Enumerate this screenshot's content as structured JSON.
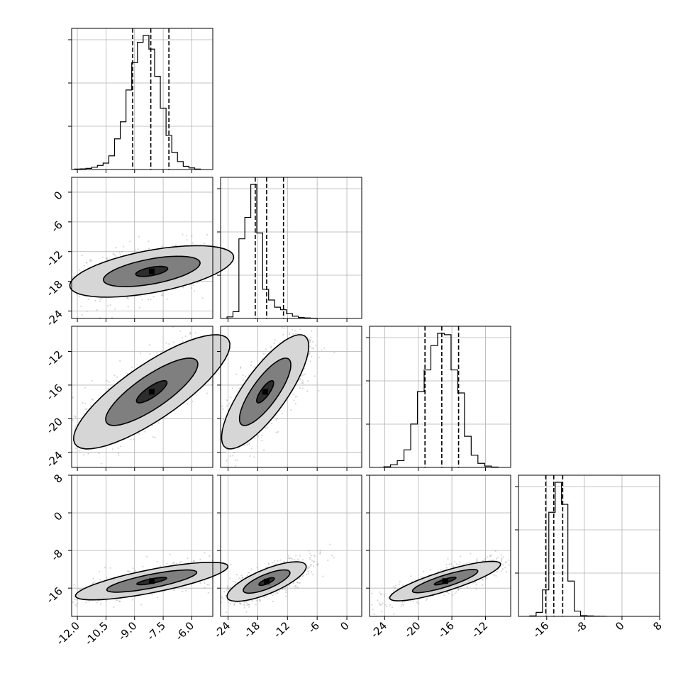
{
  "chart_data": {
    "type": "corner",
    "grid": true,
    "parameters": [
      {
        "range": [
          -12.3,
          -4.9
        ],
        "ticks": [
          "-12.0",
          "-10.5",
          "-9.0",
          "-7.5",
          "-6.0"
        ],
        "tick_values": [
          -12.0,
          -10.5,
          -9.0,
          -7.5,
          -6.0
        ]
      },
      {
        "range": [
          -25.5,
          3.0
        ],
        "ticks": [
          "-24",
          "-18",
          "-12",
          "-6",
          "0"
        ],
        "tick_values": [
          -24,
          -18,
          -12,
          -6,
          0
        ]
      },
      {
        "range": [
          -25.8,
          -9.0
        ],
        "ticks": [
          "-24",
          "-20",
          "-16",
          "-12"
        ],
        "tick_values": [
          -24,
          -20,
          -16,
          -12
        ]
      },
      {
        "range": [
          -22.0,
          8.0
        ],
        "ticks": [
          "-16",
          "-8",
          "0",
          "8"
        ],
        "tick_values": [
          -16,
          -8,
          0,
          8
        ],
        "panel_ticks": [
          "8",
          "0",
          "-8",
          "-16"
        ]
      }
    ],
    "histograms": [
      {
        "quantiles": [
          -9.1,
          -8.15,
          -7.2
        ],
        "bin_start": -12.15,
        "bin_width": 0.3,
        "counts": [
          2,
          3,
          5,
          10,
          18,
          28,
          60,
          135,
          210,
          350,
          470,
          560,
          590,
          530,
          410,
          270,
          150,
          75,
          35,
          14,
          7,
          2
        ]
      },
      {
        "quantiles": [
          -18.5,
          -16.2,
          -12.8
        ],
        "bin_start": -24.2,
        "bin_width": 1.2,
        "counts": [
          8,
          35,
          410,
          520,
          690,
          440,
          150,
          95,
          58,
          45,
          25,
          12,
          5,
          3,
          1
        ]
      },
      {
        "quantiles": [
          -19.2,
          -17.2,
          -15.2
        ],
        "bin_start": -24.1,
        "bin_width": 0.8,
        "counts": [
          5,
          20,
          50,
          130,
          320,
          560,
          720,
          900,
          990,
          980,
          720,
          550,
          230,
          90,
          30,
          10,
          3
        ]
      },
      {
        "quantiles": [
          -16.2,
          -14.5,
          -12.6
        ],
        "bin_start": -19.6,
        "bin_width": 1.35,
        "counts": [
          5,
          45,
          300,
          1180,
          1520,
          1270,
          400,
          60,
          8,
          5,
          2,
          1
        ]
      }
    ],
    "pairs": [
      {
        "x_param": 0,
        "y_param": 1,
        "center": [
          -8.1,
          -16.0
        ],
        "rx": 2.15,
        "ry": 2.6,
        "rho": 0.55
      },
      {
        "x_param": 0,
        "y_param": 2,
        "center": [
          -8.1,
          -16.8
        ],
        "rx": 2.05,
        "ry": 3.4,
        "rho": 0.82
      },
      {
        "x_param": 1,
        "y_param": 2,
        "center": [
          -16.5,
          -16.8
        ],
        "rx": 4.4,
        "ry": 3.4,
        "rho": 0.8
      },
      {
        "x_param": 0,
        "y_param": 3,
        "center": [
          -8.1,
          -14.5
        ],
        "rx": 2.0,
        "ry": 2.0,
        "rho": 0.78
      },
      {
        "x_param": 1,
        "y_param": 3,
        "center": [
          -16.2,
          -14.6
        ],
        "rx": 4.0,
        "ry": 2.1,
        "rho": 0.75
      },
      {
        "x_param": 2,
        "y_param": 3,
        "center": [
          -16.8,
          -14.5
        ],
        "rx": 3.3,
        "ry": 2.1,
        "rho": 0.85
      }
    ],
    "contour_levels": [
      0.39,
      1.18,
      2.0
    ],
    "colors": {
      "line": "#000000",
      "grid": "#b0b0b0",
      "scatter": "#7a7a7a",
      "fill_dark": "#111111",
      "fill_mid": "#5a5a5a",
      "fill_light": "#b5b5b5"
    }
  }
}
